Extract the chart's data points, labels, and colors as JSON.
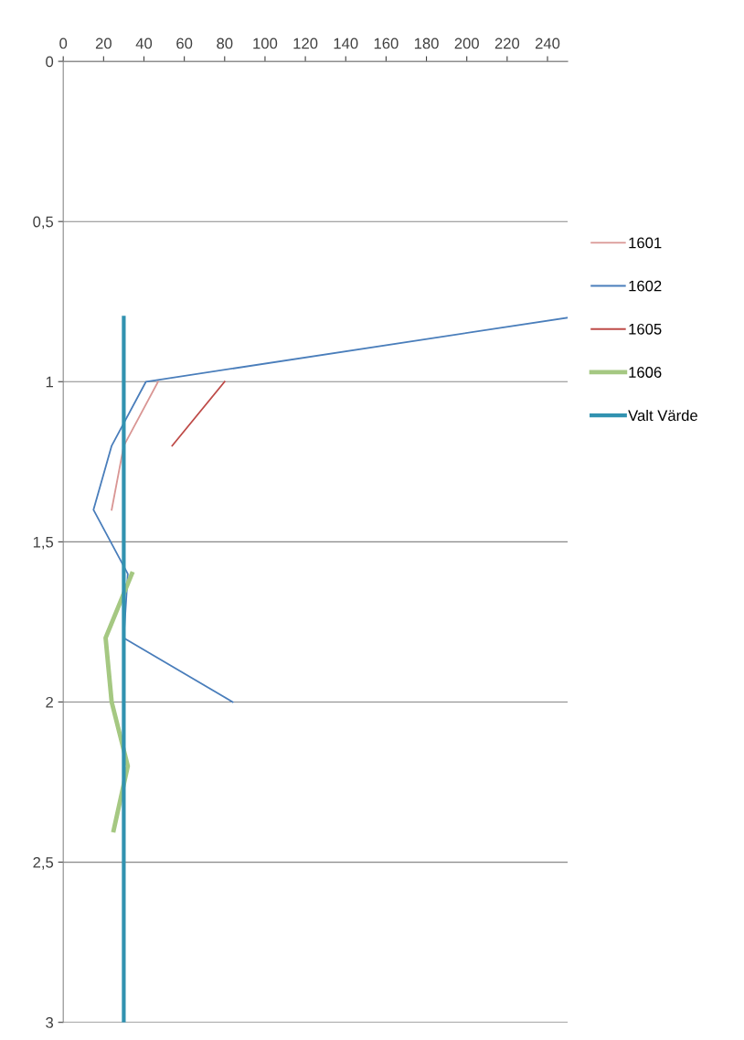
{
  "chart_data": {
    "type": "line",
    "series": [
      {
        "name": "1601",
        "color": "#d99694",
        "x": [
          47,
          30,
          24
        ],
        "values": [
          1.0,
          1.2,
          1.4
        ]
      },
      {
        "name": "1602",
        "color": "#4a7ebb",
        "x": [
          250,
          41,
          24,
          15,
          32,
          30,
          84
        ],
        "values": [
          0.8,
          1.0,
          1.2,
          1.4,
          1.6,
          1.8,
          2.0
        ]
      },
      {
        "name": "1605",
        "color": "#be4b48",
        "x": [
          80,
          54
        ],
        "values": [
          1.0,
          1.2
        ]
      },
      {
        "name": "1606",
        "color": "#a5c882",
        "x": [
          34,
          21,
          24,
          32,
          25
        ],
        "values": [
          1.6,
          1.8,
          2.0,
          2.2,
          2.4
        ]
      },
      {
        "name": "Valt Värde",
        "color": "#3192b0",
        "x": [
          30,
          30
        ],
        "values": [
          0.8,
          3
        ]
      }
    ],
    "xlim": [
      0,
      250
    ],
    "xticks": [
      0,
      20,
      40,
      60,
      80,
      100,
      120,
      140,
      160,
      180,
      200,
      220,
      240
    ],
    "ylim": [
      3,
      0
    ],
    "yticks": [
      0,
      {
        "value": 0.5,
        "label": "0,5"
      },
      1,
      {
        "value": 1.5,
        "label": "1,5"
      },
      2,
      {
        "value": 2.5,
        "label": "2,5"
      },
      3
    ],
    "grid": "y",
    "legend": "right",
    "marker": "none",
    "line_style": "solid"
  }
}
